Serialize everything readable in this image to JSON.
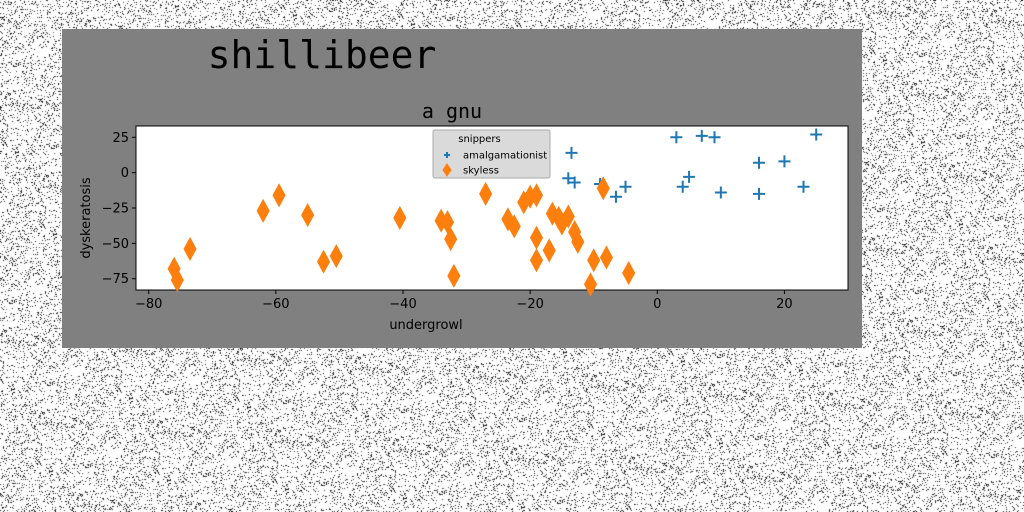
{
  "figure": {
    "suptitle": "shillibeer",
    "background_color": "#808080"
  },
  "chart_data": {
    "type": "scatter",
    "title": "a gnu",
    "xlabel": "undergrowl",
    "ylabel": "dyskeratosis",
    "xlim": [
      -82,
      30
    ],
    "ylim": [
      -83,
      33
    ],
    "xticks": [
      -80,
      -60,
      -40,
      -20,
      0,
      20
    ],
    "yticks": [
      25,
      0,
      -25,
      -50,
      -75
    ],
    "grid": false,
    "legend": {
      "title": "snippers",
      "placement": "top-center",
      "entries": [
        "amalgamationist",
        "skyless"
      ]
    },
    "series": [
      {
        "name": "amalgamationist",
        "marker": "plus",
        "color": "#1f77b4",
        "points": [
          [
            -13.5,
            14
          ],
          [
            -14,
            -4
          ],
          [
            -13,
            -7
          ],
          [
            -9,
            -8
          ],
          [
            -6.5,
            -17
          ],
          [
            -5,
            -10
          ],
          [
            3,
            25
          ],
          [
            4,
            -10
          ],
          [
            5,
            -3
          ],
          [
            7,
            26
          ],
          [
            9,
            25
          ],
          [
            10,
            -14
          ],
          [
            16,
            7
          ],
          [
            16,
            -15
          ],
          [
            20,
            8
          ],
          [
            23,
            -10
          ],
          [
            25,
            27
          ]
        ]
      },
      {
        "name": "skyless",
        "marker": "thin_diamond",
        "color": "#ff7f0e",
        "points": [
          [
            -76,
            -68
          ],
          [
            -75.5,
            -76
          ],
          [
            -73.5,
            -54
          ],
          [
            -62,
            -27
          ],
          [
            -59.5,
            -16
          ],
          [
            -55,
            -30
          ],
          [
            -52.5,
            -63
          ],
          [
            -50.5,
            -59
          ],
          [
            -40.5,
            -32
          ],
          [
            -34,
            -34
          ],
          [
            -33,
            -35
          ],
          [
            -32.5,
            -47
          ],
          [
            -32,
            -73
          ],
          [
            -27,
            -15
          ],
          [
            -23.5,
            -33
          ],
          [
            -22.5,
            -38
          ],
          [
            -21,
            -21
          ],
          [
            -20,
            -17
          ],
          [
            -19,
            -16
          ],
          [
            -19,
            -46
          ],
          [
            -19,
            -62
          ],
          [
            -17,
            -55
          ],
          [
            -16.5,
            -29
          ],
          [
            -15.5,
            -32
          ],
          [
            -15,
            -36
          ],
          [
            -14,
            -31
          ],
          [
            -13,
            -42
          ],
          [
            -12.5,
            -49
          ],
          [
            -10.5,
            -79
          ],
          [
            -10,
            -62
          ],
          [
            -8.5,
            -11
          ],
          [
            -8,
            -60
          ],
          [
            -4.5,
            -71
          ]
        ]
      }
    ]
  }
}
